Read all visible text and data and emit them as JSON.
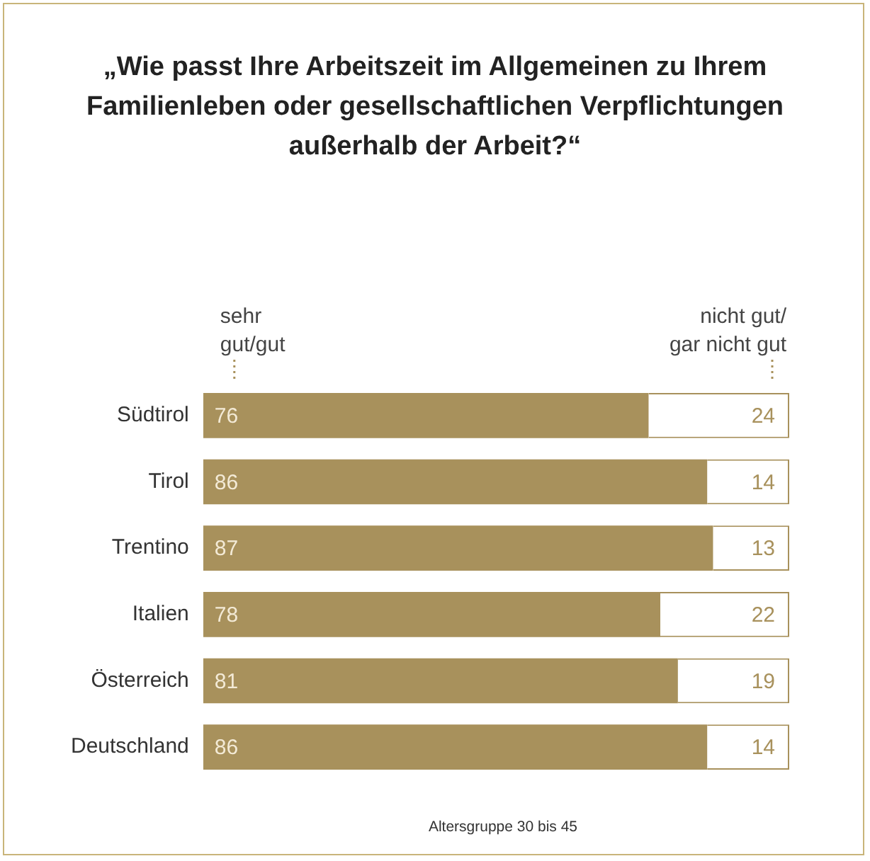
{
  "chart_data": {
    "type": "bar",
    "orientation": "horizontal",
    "stacked": true,
    "title": "„Wie passt Ihre Arbeitszeit im Allgemeinen zu Ihrem Familienleben oder gesellschaftlichen Verpflichtungen außerhalb der Arbeit?“",
    "categories": [
      "Südtirol",
      "Tirol",
      "Trentino",
      "Italien",
      "Österreich",
      "Deutschland"
    ],
    "series": [
      {
        "name": "sehr gut/gut",
        "color": "#a8915c",
        "values": [
          76,
          86,
          87,
          78,
          81,
          86
        ]
      },
      {
        "name": "nicht gut/gar nicht gut",
        "color": "#ffffff",
        "values": [
          24,
          14,
          13,
          22,
          19,
          14
        ]
      }
    ],
    "xlim": [
      0,
      100
    ],
    "tick_labels": "y",
    "grid": false,
    "legend": false,
    "data_labels": true,
    "annotations": [
      "Altersgruppe 30 bis 45"
    ]
  }
}
